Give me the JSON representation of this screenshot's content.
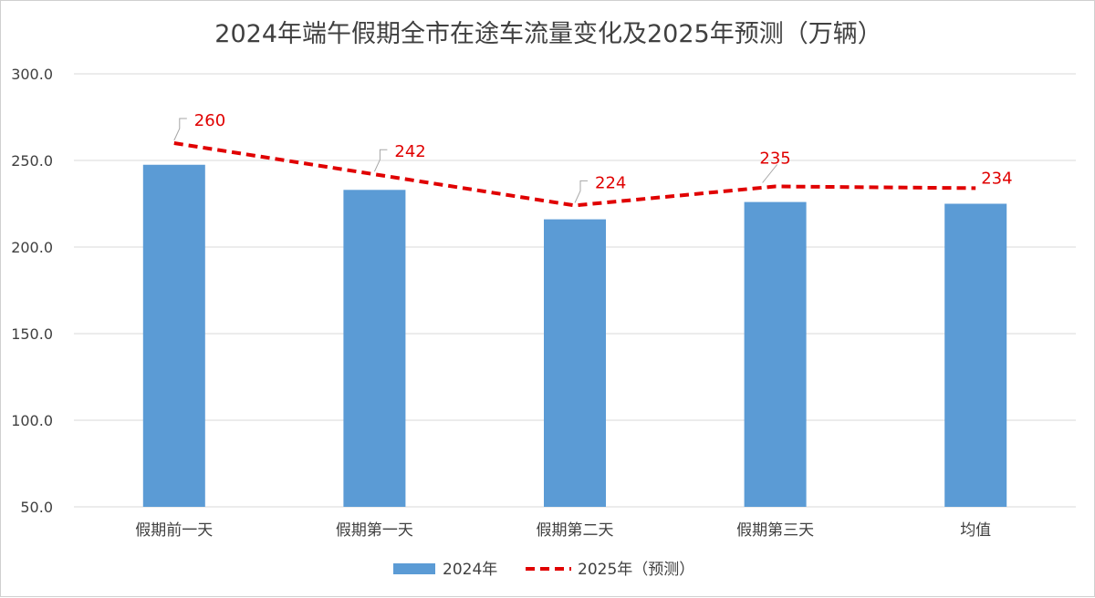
{
  "chart_data": {
    "type": "bar+line",
    "title": "2024年端午假期全市在途车流量变化及2025年预测（万辆）",
    "categories": [
      "假期前一天",
      "假期第一天",
      "假期第二天",
      "假期第三天",
      "均值"
    ],
    "series": [
      {
        "name": "2024年",
        "type": "bar",
        "color": "#5b9bd5",
        "values": [
          247.5,
          233,
          216,
          226,
          225
        ]
      },
      {
        "name": "2025年（预测）",
        "type": "line",
        "style": "dashed",
        "color": "#e00000",
        "values": [
          260,
          242,
          224,
          235,
          234
        ]
      }
    ],
    "data_labels": [
      "260",
      "242",
      "224",
      "235",
      "234"
    ],
    "ylim": [
      50,
      300
    ],
    "yticks": [
      "50.0",
      "100.0",
      "150.0",
      "200.0",
      "250.0",
      "300.0"
    ],
    "grid": true,
    "legend_position": "bottom"
  }
}
